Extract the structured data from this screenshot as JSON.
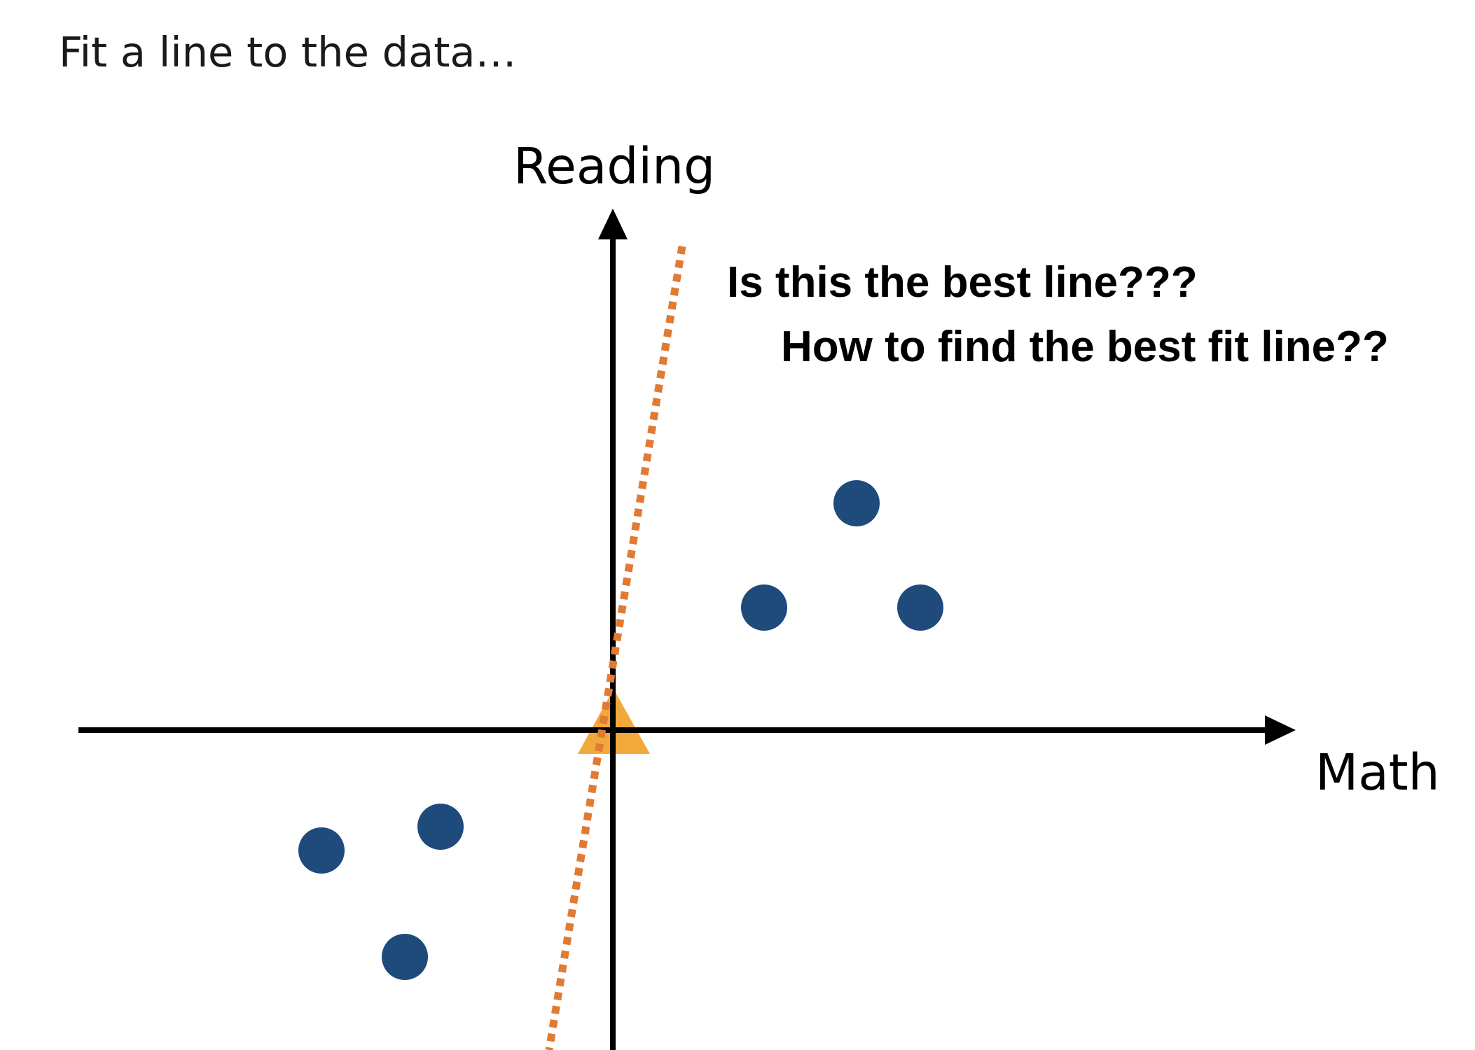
{
  "title": "Fit a line to the data…",
  "axes": {
    "y_label": "Reading",
    "x_label": "Math"
  },
  "questions": {
    "line_question": "Is this the best line???",
    "method_question": "How to find the best fit line??"
  },
  "colors": {
    "data_point": "#1f4a7c",
    "origin_marker": "#f2a93b",
    "candidate_line": "#e07b33",
    "axes": "#000000"
  },
  "diagram": {
    "data_points": [
      {
        "quadrant": "upper-right",
        "role": "top"
      },
      {
        "quadrant": "upper-right",
        "role": "left"
      },
      {
        "quadrant": "upper-right",
        "role": "right"
      },
      {
        "quadrant": "lower-left",
        "role": "upper-right"
      },
      {
        "quadrant": "lower-left",
        "role": "left"
      },
      {
        "quadrant": "lower-left",
        "role": "bottom"
      }
    ],
    "origin_marker": "triangle",
    "candidate_line_style": "dotted"
  }
}
